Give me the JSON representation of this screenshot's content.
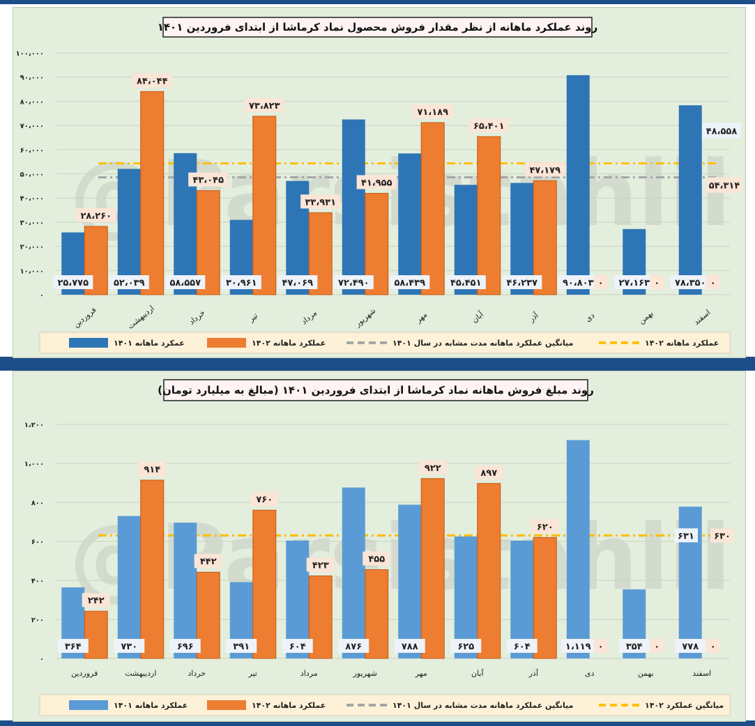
{
  "watermark": "@Parsistahlil",
  "chart_data": [
    {
      "type": "bar",
      "title": "روند عملکرد ماهانه از نظر مقدار فروش محصول نماد کرماشا از ابتدای فروردین ۱۴۰۱",
      "categories": [
        "فروردین",
        "اردیبهشت",
        "خرداد",
        "تیر",
        "مرداد",
        "شهریور",
        "مهر",
        "آبان",
        "آذر",
        "دی",
        "بهمن",
        "اسفند"
      ],
      "ylim": [
        0,
        100000
      ],
      "yticks": [
        0,
        10000,
        20000,
        30000,
        40000,
        50000,
        60000,
        70000,
        80000,
        90000,
        100000
      ],
      "ytick_labels": [
        "۰",
        "۱۰،۰۰۰",
        "۲۰،۰۰۰",
        "۳۰،۰۰۰",
        "۴۰،۰۰۰",
        "۵۰،۰۰۰",
        "۶۰،۰۰۰",
        "۷۰،۰۰۰",
        "۸۰،۰۰۰",
        "۹۰،۰۰۰",
        "۱۰۰،۰۰۰"
      ],
      "series": [
        {
          "name": "عمکرد ماهانه ۱۴۰۱",
          "color": "#2e75b6",
          "values": [
            25775,
            52039,
            58557,
            30961,
            47069,
            72490,
            58439,
            45451,
            46237,
            90803,
            27163,
            78350
          ],
          "labels": [
            "۲۵،۷۷۵",
            "۵۲،۰۳۹",
            "۵۸،۵۵۷",
            "۳۰،۹۶۱",
            "۴۷،۰۶۹",
            "۷۲،۴۹۰",
            "۵۸،۴۳۹",
            "۴۵،۴۵۱",
            "۴۶،۲۳۷",
            "۹۰،۸۰۳",
            "۲۷،۱۶۳",
            "۷۸،۳۵۰"
          ]
        },
        {
          "name": "عملکرد ماهانه ۱۴۰۲",
          "color": "#ed7d31",
          "values": [
            28260,
            84044,
            43045,
            73823,
            33931,
            41955,
            71189,
            65401,
            47179,
            0,
            0,
            0
          ],
          "labels": [
            "۲۸،۲۶۰",
            "۸۴،۰۴۴",
            "۴۳،۰۴۵",
            "۷۳،۸۲۳",
            "۳۳،۹۳۱",
            "۴۱،۹۵۵",
            "۷۱،۱۸۹",
            "۶۵،۴۰۱",
            "۴۷،۱۷۹",
            "۰",
            "۰",
            "۰"
          ]
        }
      ],
      "averages": [
        {
          "name": "میانگین عملکرد ماهانه مدت مشابه در سال ۱۴۰۱",
          "value": 48558,
          "label": "۴۸،۵۵۸",
          "color": "#a6a6a6"
        },
        {
          "name": "عملکرد ماهانه ۱۴۰۲",
          "value": 54314,
          "label": "۵۴،۳۱۴",
          "color": "#ffc000"
        }
      ]
    },
    {
      "type": "bar",
      "title": "روند مبلغ فروش ماهانه نماد کرماشا از ابتدای فروردین ۱۴۰۱ (مبالغ به میلیارد تومان)",
      "categories": [
        "فروردین",
        "اردیبهشت",
        "خرداد",
        "تیر",
        "مرداد",
        "شهریور",
        "مهر",
        "آبان",
        "آذر",
        "دی",
        "بهمن",
        "اسفند"
      ],
      "ylim": [
        0,
        1200
      ],
      "yticks": [
        0,
        200,
        400,
        600,
        800,
        1000,
        1200
      ],
      "ytick_labels": [
        "۰",
        "۲۰۰",
        "۴۰۰",
        "۶۰۰",
        "۸۰۰",
        "۱،۰۰۰",
        "۱،۲۰۰"
      ],
      "series": [
        {
          "name": "عملکرد ماهانه ۱۴۰۱",
          "color": "#5b9bd5",
          "values": [
            364,
            730,
            696,
            391,
            604,
            876,
            788,
            625,
            604,
            1119,
            354,
            778
          ],
          "labels": [
            "۳۶۴",
            "۷۳۰",
            "۶۹۶",
            "۳۹۱",
            "۶۰۴",
            "۸۷۶",
            "۷۸۸",
            "۶۲۵",
            "۶۰۴",
            "۱،۱۱۹",
            "۳۵۴",
            "۷۷۸"
          ]
        },
        {
          "name": "عملکرد ماهانه ۱۴۰۲",
          "color": "#ed7d31",
          "values": [
            242,
            914,
            442,
            760,
            423,
            455,
            922,
            897,
            620,
            0,
            0,
            0
          ],
          "labels": [
            "۲۴۲",
            "۹۱۴",
            "۴۴۲",
            "۷۶۰",
            "۴۲۳",
            "۴۵۵",
            "۹۲۲",
            "۸۹۷",
            "۶۲۰",
            "۰",
            "۰",
            "۰"
          ]
        }
      ],
      "averages": [
        {
          "name": "میانگین عملکرد ماهانه مدت مشابه در سال ۱۴۰۱",
          "value": 630,
          "label": "۶۳۰",
          "color": "#a6a6a6"
        },
        {
          "name": "میانگین عملکرد ۱۴۰۲",
          "value": 631,
          "label": "۶۳۱",
          "color": "#ffc000"
        }
      ]
    }
  ]
}
